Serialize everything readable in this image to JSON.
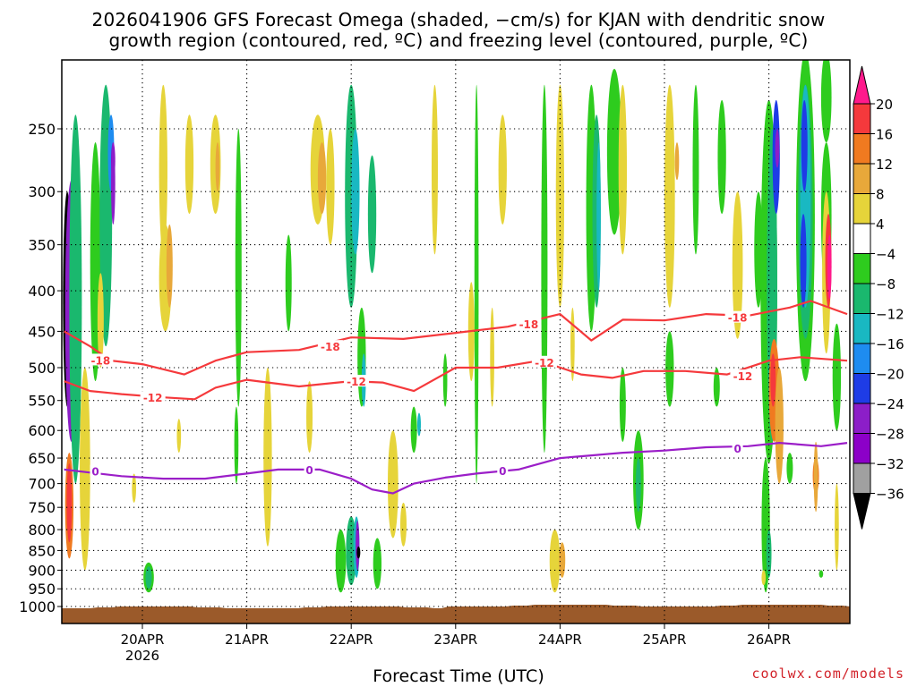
{
  "title_line1": "2026041906 GFS Forecast Omega (shaded, −cm/s) for KJAN with dendritic snow",
  "title_line2": "growth region (contoured, red, ºC) and freezing level (contoured, purple, ºC)",
  "x_axis_title": "Forecast Time (UTC)",
  "credit": "coolwx.com/models",
  "year_label": "2026",
  "chart_data": {
    "type": "heatmap",
    "x_tick_labels": [
      "20APR",
      "21APR",
      "22APR",
      "23APR",
      "24APR",
      "25APR",
      "26APR"
    ],
    "x_tick_days": [
      20,
      21,
      22,
      23,
      24,
      25,
      26
    ],
    "x_range_days": [
      19.25,
      26.75
    ],
    "y_ticks_hpa": [
      250,
      300,
      350,
      400,
      450,
      500,
      550,
      600,
      650,
      700,
      750,
      800,
      850,
      900,
      950,
      1000
    ],
    "y_range_hpa": [
      200,
      1010
    ],
    "y_scale": "log-pressure",
    "grid": true,
    "colorbar": {
      "labels": [
        "20",
        "16",
        "12",
        "8",
        "4",
        "−4",
        "−8",
        "−12",
        "−16",
        "−20",
        "−24",
        "−28",
        "−32",
        "−36"
      ],
      "colors": [
        "#ff1a8c",
        "#f5393c",
        "#f07a20",
        "#e8a83a",
        "#e6d43a",
        "#ffffff",
        "#2ecc1e",
        "#1ab86e",
        "#19b8c2",
        "#1e8cf0",
        "#1e3ce6",
        "#8c1ec8",
        "#8c00c8",
        "#a0a0a0",
        "#000000"
      ]
    },
    "contours": [
      {
        "label": "-18",
        "color": "#f5393c",
        "points_day_hpa": [
          [
            19.25,
            450
          ],
          [
            19.5,
            470
          ],
          [
            19.7,
            490
          ],
          [
            20.0,
            495
          ],
          [
            20.4,
            510
          ],
          [
            20.7,
            490
          ],
          [
            21.0,
            478
          ],
          [
            21.5,
            475
          ],
          [
            22.0,
            458
          ],
          [
            22.5,
            460
          ],
          [
            23.0,
            452
          ],
          [
            23.5,
            444
          ],
          [
            24.0,
            428
          ],
          [
            24.3,
            462
          ],
          [
            24.6,
            435
          ],
          [
            25.0,
            436
          ],
          [
            25.4,
            428
          ],
          [
            25.8,
            430
          ],
          [
            26.2,
            420
          ],
          [
            26.4,
            412
          ],
          [
            26.75,
            428
          ]
        ]
      },
      {
        "label": "-12",
        "color": "#f5393c",
        "points_day_hpa": [
          [
            19.25,
            520
          ],
          [
            19.5,
            535
          ],
          [
            19.8,
            540
          ],
          [
            20.2,
            545
          ],
          [
            20.5,
            548
          ],
          [
            20.7,
            530
          ],
          [
            21.0,
            518
          ],
          [
            21.5,
            528
          ],
          [
            22.0,
            520
          ],
          [
            22.3,
            522
          ],
          [
            22.6,
            535
          ],
          [
            23.0,
            500
          ],
          [
            23.4,
            500
          ],
          [
            23.8,
            490
          ],
          [
            24.2,
            510
          ],
          [
            24.5,
            515
          ],
          [
            24.8,
            505
          ],
          [
            25.2,
            505
          ],
          [
            25.6,
            510
          ],
          [
            26.0,
            490
          ],
          [
            26.3,
            485
          ],
          [
            26.75,
            490
          ]
        ]
      },
      {
        "label": "0",
        "color": "#9b1ec8",
        "points_day_hpa": [
          [
            19.25,
            672
          ],
          [
            19.5,
            678
          ],
          [
            19.8,
            685
          ],
          [
            20.2,
            690
          ],
          [
            20.6,
            690
          ],
          [
            21.0,
            680
          ],
          [
            21.3,
            672
          ],
          [
            21.7,
            672
          ],
          [
            22.0,
            690
          ],
          [
            22.2,
            712
          ],
          [
            22.4,
            720
          ],
          [
            22.6,
            700
          ],
          [
            22.9,
            688
          ],
          [
            23.2,
            680
          ],
          [
            23.6,
            672
          ],
          [
            24.0,
            650
          ],
          [
            24.3,
            645
          ],
          [
            24.6,
            640
          ],
          [
            25.0,
            636
          ],
          [
            25.4,
            630
          ],
          [
            25.8,
            628
          ],
          [
            26.1,
            622
          ],
          [
            26.5,
            628
          ],
          [
            26.75,
            622
          ]
        ]
      }
    ],
    "contour_labels": [
      {
        "text": "-18",
        "day": 19.6,
        "hpa": 489
      },
      {
        "text": "-18",
        "day": 21.8,
        "hpa": 470
      },
      {
        "text": "-18",
        "day": 23.7,
        "hpa": 440
      },
      {
        "text": "-18",
        "day": 25.7,
        "hpa": 432
      },
      {
        "text": "-12",
        "day": 20.1,
        "hpa": 545
      },
      {
        "text": "-12",
        "day": 22.05,
        "hpa": 520
      },
      {
        "text": "-12",
        "day": 23.85,
        "hpa": 492
      },
      {
        "text": "-12",
        "day": 25.75,
        "hpa": 512
      },
      {
        "text": "0",
        "day": 19.55,
        "hpa": 675
      },
      {
        "text": "0",
        "day": 21.6,
        "hpa": 672
      },
      {
        "text": "0",
        "day": 23.45,
        "hpa": 674
      },
      {
        "text": "0",
        "day": 25.7,
        "hpa": 632
      }
    ]
  }
}
